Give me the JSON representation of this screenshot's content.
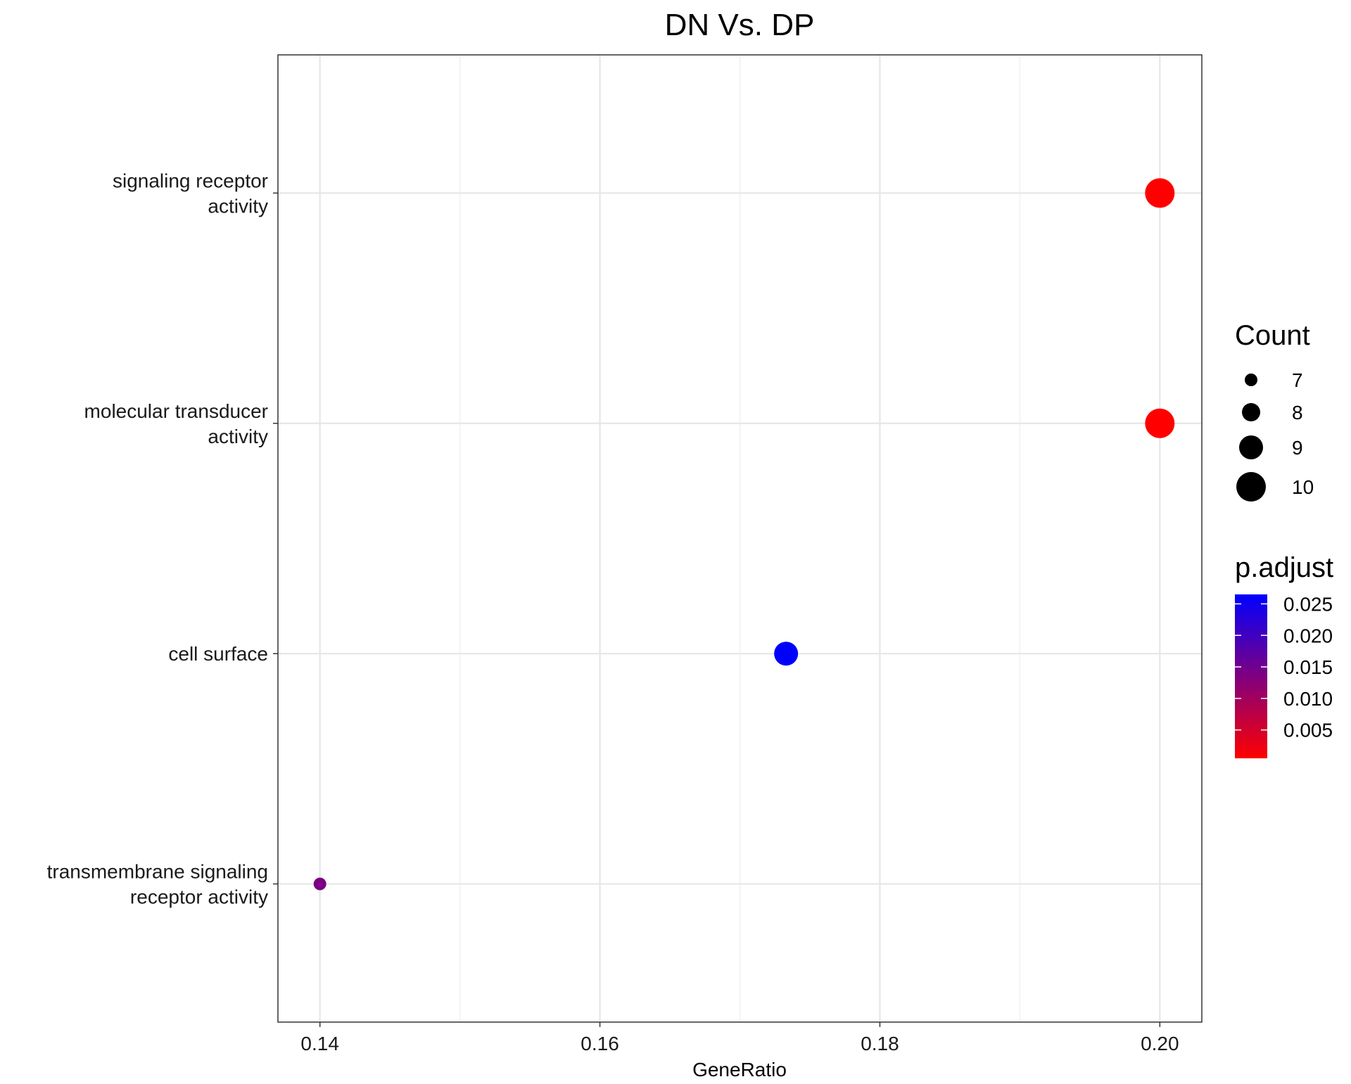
{
  "chart_data": {
    "type": "scatter",
    "title": "DN Vs. DP",
    "xlabel": "GeneRatio",
    "ylabel": "",
    "xlim": [
      0.137,
      0.203
    ],
    "x_ticks": [
      0.14,
      0.16,
      0.18,
      0.2
    ],
    "x_tick_labels": [
      "0.14",
      "0.16",
      "0.18",
      "0.20"
    ],
    "categories": [
      "signaling receptor activity",
      "molecular transducer activity",
      "cell surface",
      "transmembrane signaling receptor activity"
    ],
    "category_label_lines": [
      [
        "signaling receptor",
        "activity"
      ],
      [
        "molecular transducer",
        "activity"
      ],
      [
        "cell surface"
      ],
      [
        "transmembrane signaling",
        "receptor activity"
      ]
    ],
    "points": [
      {
        "term": "signaling receptor activity",
        "gene_ratio": 0.2,
        "count": 10,
        "p_adjust": 0.0005
      },
      {
        "term": "molecular transducer activity",
        "gene_ratio": 0.2,
        "count": 10,
        "p_adjust": 0.0005
      },
      {
        "term": "cell surface",
        "gene_ratio": 0.1733,
        "count": 9,
        "p_adjust": 0.0265
      },
      {
        "term": "transmembrane signaling receptor activity",
        "gene_ratio": 0.14,
        "count": 7,
        "p_adjust": 0.014
      }
    ],
    "size_legend": {
      "title": "Count",
      "values": [
        7,
        8,
        9,
        10
      ],
      "labels": [
        "7",
        "8",
        "9",
        "10"
      ]
    },
    "color_legend": {
      "title": "p.adjust",
      "range": [
        0.0005,
        0.0265
      ],
      "ticks": [
        0.025,
        0.02,
        0.015,
        0.01,
        0.005
      ],
      "tick_labels": [
        "0.025",
        "0.020",
        "0.015",
        "0.010",
        "0.005"
      ],
      "low_color": "#ff0000",
      "high_color": "#0000ff"
    },
    "grid": true,
    "legend_position": "right"
  }
}
